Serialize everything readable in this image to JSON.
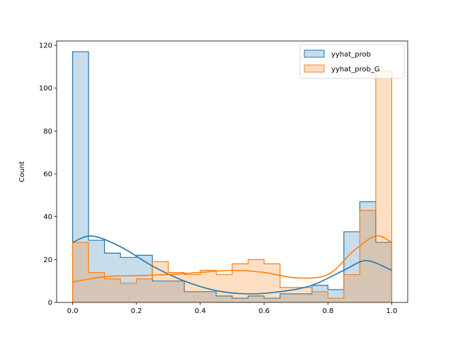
{
  "chart_data": {
    "type": "histogram",
    "title": "",
    "xlabel": "",
    "ylabel": "Count",
    "xlim": [
      -0.05,
      1.05
    ],
    "ylim": [
      0,
      122
    ],
    "grid": false,
    "legend_position": "upper right",
    "bin_edges": [
      0.0,
      0.05,
      0.1,
      0.15,
      0.2,
      0.25,
      0.3,
      0.35,
      0.4,
      0.45,
      0.5,
      0.55,
      0.6,
      0.65,
      0.7,
      0.75,
      0.8,
      0.85,
      0.9,
      0.95,
      1.0
    ],
    "x_ticks": [
      0.0,
      0.2,
      0.4,
      0.6,
      0.8,
      1.0
    ],
    "x_tick_labels": [
      "0.0",
      "0.2",
      "0.4",
      "0.6",
      "0.8",
      "1.0"
    ],
    "y_ticks": [
      0,
      20,
      40,
      60,
      80,
      100,
      120
    ],
    "y_tick_labels": [
      "0",
      "20",
      "40",
      "60",
      "80",
      "100",
      "120"
    ],
    "series": [
      {
        "name": "yyhat_prob",
        "color": "#1f77b4",
        "counts": [
          117,
          29,
          23,
          21,
          22,
          10,
          10,
          5,
          5,
          3,
          2,
          3,
          2,
          4,
          4,
          8,
          6,
          33,
          47,
          28
        ],
        "kde": [
          [
            0.0,
            28
          ],
          [
            0.06,
            31
          ],
          [
            0.15,
            26
          ],
          [
            0.25,
            17
          ],
          [
            0.35,
            10
          ],
          [
            0.45,
            5.5
          ],
          [
            0.55,
            4
          ],
          [
            0.65,
            5
          ],
          [
            0.75,
            8
          ],
          [
            0.85,
            15
          ],
          [
            0.92,
            19.5
          ],
          [
            1.0,
            15
          ]
        ]
      },
      {
        "name": "yyhat_prob_G",
        "color": "#ff7f0e",
        "counts": [
          28,
          14,
          11,
          9,
          11,
          19,
          14,
          13,
          15,
          13,
          18,
          20,
          18,
          7,
          7,
          5,
          2,
          13,
          43,
          108
        ],
        "kde": [
          [
            0.0,
            9.5
          ],
          [
            0.1,
            12
          ],
          [
            0.2,
            12.5
          ],
          [
            0.3,
            13
          ],
          [
            0.4,
            14
          ],
          [
            0.5,
            15
          ],
          [
            0.6,
            14
          ],
          [
            0.7,
            11.5
          ],
          [
            0.8,
            13
          ],
          [
            0.88,
            24
          ],
          [
            0.95,
            31
          ],
          [
            1.0,
            28
          ]
        ]
      }
    ]
  }
}
